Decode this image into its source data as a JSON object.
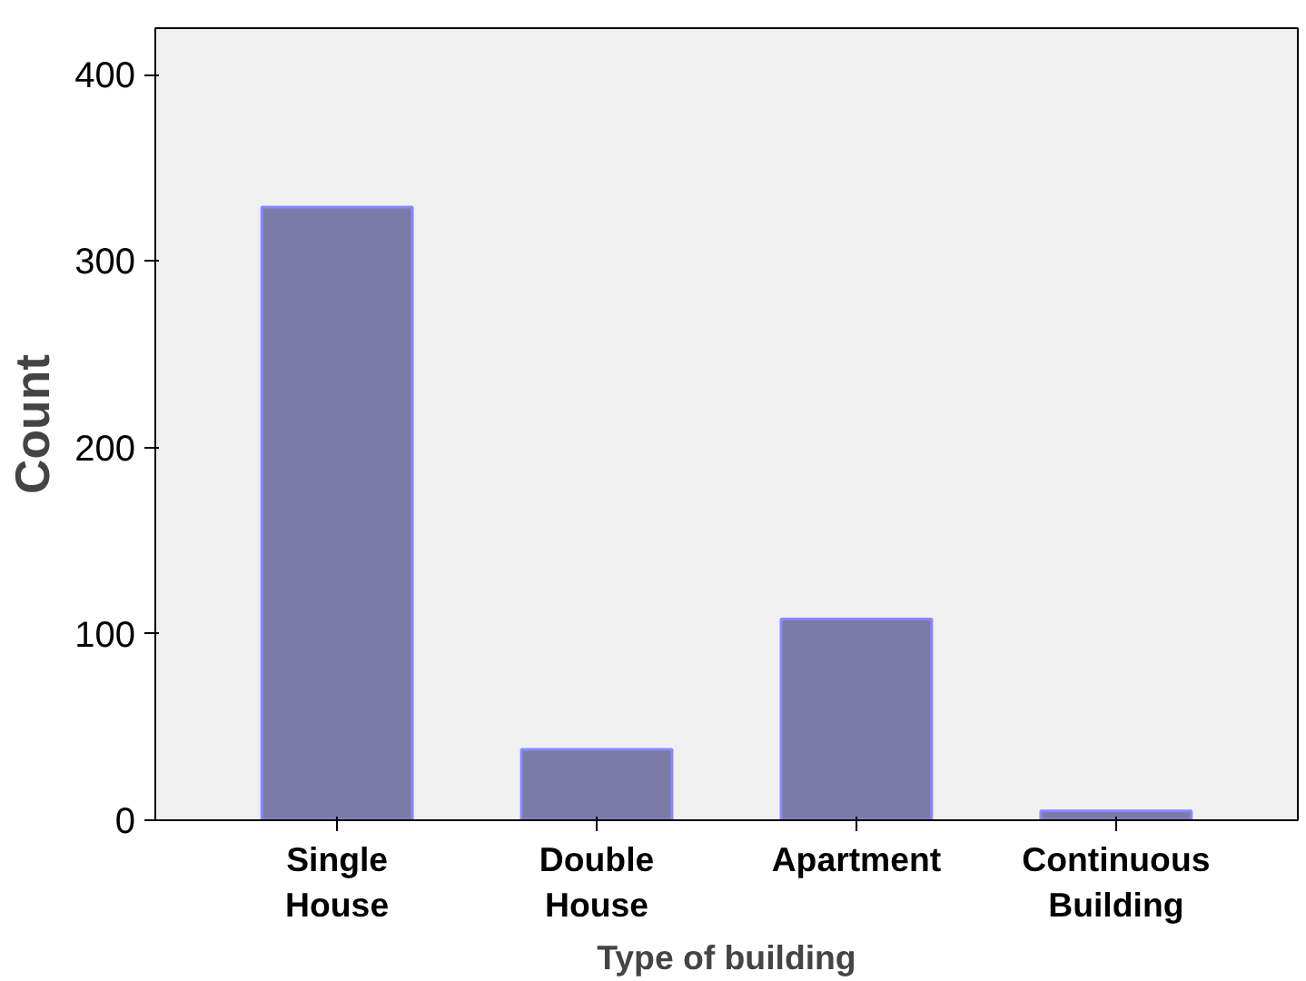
{
  "chart_data": {
    "type": "bar",
    "xlabel": "Type of building",
    "ylabel": "Count",
    "categories": [
      "Single\nHouse",
      "Double\nHouse",
      "Apartment",
      "Continuous\nBuilding"
    ],
    "values": [
      329,
      38,
      108,
      5
    ],
    "color": "#7b7ba8",
    "ylim": [
      0,
      425
    ],
    "yticks": [
      0,
      100,
      200,
      300,
      400
    ],
    "grid": false
  }
}
